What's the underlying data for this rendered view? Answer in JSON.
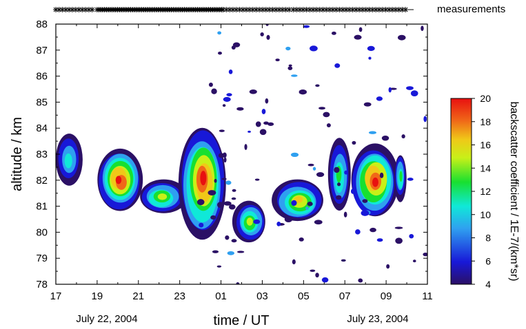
{
  "chart_data": {
    "type": "heatmap",
    "xlabel": "time / UT",
    "ylabel": "altitude / km",
    "x_hours_from": 17,
    "x_hours_to": 35,
    "x_tick_labels": [
      "17",
      "19",
      "21",
      "23",
      "01",
      "03",
      "05",
      "07",
      "09",
      "11"
    ],
    "y_tick_labels": [
      "78",
      "79",
      "80",
      "81",
      "82",
      "83",
      "84",
      "85",
      "86",
      "87",
      "88"
    ],
    "ylim": [
      78,
      88
    ],
    "date_labels": [
      "July 22, 2004",
      "July 23, 2004"
    ],
    "measurements_label": "measurements",
    "measurement_periods": [
      [
        17.0,
        18.9
      ],
      [
        19.0,
        25.1
      ],
      [
        25.1,
        28.4
      ],
      [
        28.5,
        34.0
      ]
    ],
    "colorbar": {
      "label": "backscatter coefficient / 1E-7/(km*sr)",
      "range": [
        4,
        20
      ],
      "tick_labels": [
        "4",
        "6",
        "8",
        "10",
        "12",
        "14",
        "16",
        "18",
        "20"
      ],
      "colors": [
        "#2b1065",
        "#1818d8",
        "#2fa0f0",
        "#10e8d8",
        "#18e030",
        "#c8f018",
        "#f0c818",
        "#f06818",
        "#e81010"
      ]
    },
    "layers": [
      {
        "time_range": [
          17.0,
          18.3
        ],
        "altitude_range": [
          81.8,
          83.8
        ],
        "peak_value": 10
      },
      {
        "time_range": [
          19.0,
          21.2
        ],
        "altitude_range": [
          80.8,
          83.2
        ],
        "peak_value": 20
      },
      {
        "time_range": [
          21.0,
          23.3
        ],
        "altitude_range": [
          80.7,
          82.0
        ],
        "peak_value": 14
      },
      {
        "time_range": [
          23.0,
          25.3
        ],
        "altitude_range": [
          79.8,
          84.1
        ],
        "peak_value": 20
      },
      {
        "time_range": [
          25.6,
          27.2
        ],
        "altitude_range": [
          79.6,
          81.2
        ],
        "peak_value": 14
      },
      {
        "time_range": [
          27.5,
          30.0
        ],
        "altitude_range": [
          80.4,
          82.0
        ],
        "peak_value": 16
      },
      {
        "time_range": [
          30.2,
          31.3
        ],
        "altitude_range": [
          80.8,
          83.6
        ],
        "peak_value": 12
      },
      {
        "time_range": [
          31.3,
          33.6
        ],
        "altitude_range": [
          80.6,
          83.4
        ],
        "peak_value": 20
      },
      {
        "time_range": [
          33.4,
          34.0
        ],
        "altitude_range": [
          81.2,
          83.0
        ],
        "peak_value": 12
      }
    ]
  }
}
